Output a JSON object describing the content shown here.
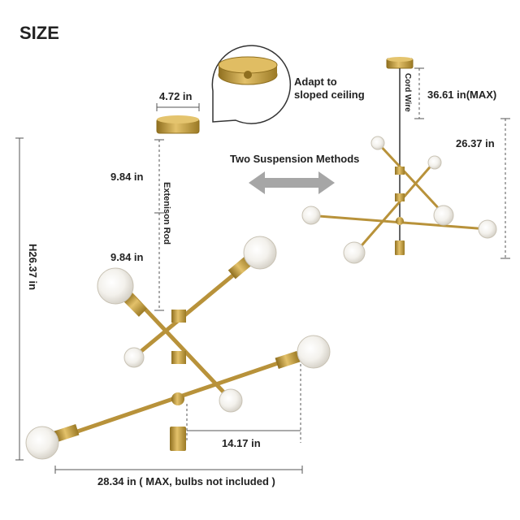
{
  "heading": "SIZE",
  "dimensions": {
    "canopy_width": "4.72 in",
    "rod_segment_upper": "9.84 in",
    "rod_segment_lower": "9.84 in",
    "extension_rod": "Extenison Rod",
    "overall_height": "H26.37 in",
    "arm_offset": "14.17 in",
    "overall_width": "28.34 in ( MAX, bulbs not included )"
  },
  "callout": {
    "text_line1": "Adapt to",
    "text_line2": "sloped ceiling"
  },
  "suspension": {
    "title": "Two Suspension Methods",
    "cord_wire": "Cord Wire",
    "cord_length": "36.61 in(MAX)",
    "fixture_height": "26.37 in"
  },
  "colors": {
    "brass": "#c9a341",
    "brass_dark": "#8f6f1f",
    "arrow_gray": "#a6a6a6",
    "text": "#222222",
    "dim_line": "#555555"
  }
}
